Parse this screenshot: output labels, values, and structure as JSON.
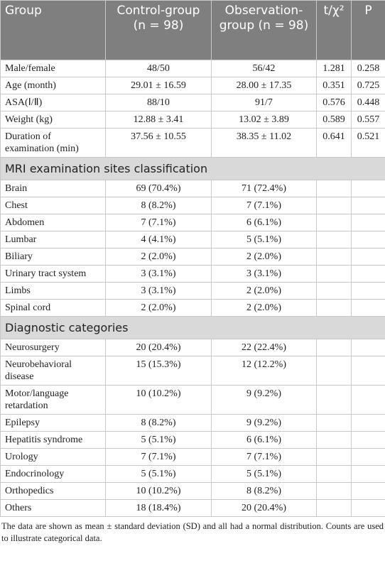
{
  "table": {
    "header": [
      "Group",
      "Control-group (n = 98)",
      "Observation-group (n = 98)",
      "t/χ²",
      "P"
    ],
    "groups": [
      {
        "rows": [
          [
            "Male/female",
            "48/50",
            "56/42",
            "1.281",
            "0.258"
          ],
          [
            "Age (month)",
            "29.01 ± 16.59",
            "28.00 ± 17.35",
            "0.351",
            "0.725"
          ],
          [
            "ASA(Ⅰ/Ⅱ)",
            "88/10",
            "91/7",
            "0.576",
            "0.448"
          ],
          [
            "Weight (kg)",
            "12.88 ± 3.41",
            "13.02 ± 3.89",
            "0.589",
            "0.557"
          ],
          [
            "Duration of examination (min)",
            "37.56 ± 10.55",
            "38.35 ± 11.02",
            "0.641",
            "0.521"
          ]
        ]
      },
      {
        "title": "MRI examination sites classification",
        "rows": [
          [
            "Brain",
            "69 (70.4%)",
            "71 (72.4%)"
          ],
          [
            "Chest",
            "8 (8.2%)",
            "7 (7.1%)"
          ],
          [
            "Abdomen",
            "7 (7.1%)",
            "6 (6.1%)"
          ],
          [
            "Lumbar",
            "4 (4.1%)",
            "5 (5.1%)"
          ],
          [
            "Biliary",
            "2 (2.0%)",
            "2 (2.0%)"
          ],
          [
            "Urinary tract system",
            "3 (3.1%)",
            "3 (3.1%)"
          ],
          [
            "Limbs",
            "3 (3.1%)",
            "2 (2.0%)"
          ],
          [
            "Spinal cord",
            "2 (2.0%)",
            "2 (2.0%)"
          ]
        ]
      },
      {
        "title": "Diagnostic categories",
        "rows": [
          [
            "Neurosurgery",
            "20 (20.4%)",
            "22 (22.4%)"
          ],
          [
            "Neurobehavioral disease",
            "15 (15.3%)",
            "12 (12.2%)"
          ],
          [
            "Motor/language retardation",
            "10 (10.2%)",
            "9 (9.2%)"
          ],
          [
            "Epilepsy",
            "8 (8.2%)",
            "9 (9.2%)"
          ],
          [
            "Hepatitis syndrome",
            "5 (5.1%)",
            "6 (6.1%)"
          ],
          [
            "Urology",
            "7 (7.1%)",
            "7 (7.1%)"
          ],
          [
            "Endocrinology",
            "5 (5.1%)",
            "5 (5.1%)"
          ],
          [
            "Orthopedics",
            "10 (10.2%)",
            "8 (8.2%)"
          ],
          [
            "Others",
            "18 (18.4%)",
            "20 (20.4%)"
          ]
        ]
      }
    ]
  },
  "footnote": "The data are shown as mean ± standard deviation (SD) and all had a normal distribution. Counts are used to illustrate categorical data."
}
